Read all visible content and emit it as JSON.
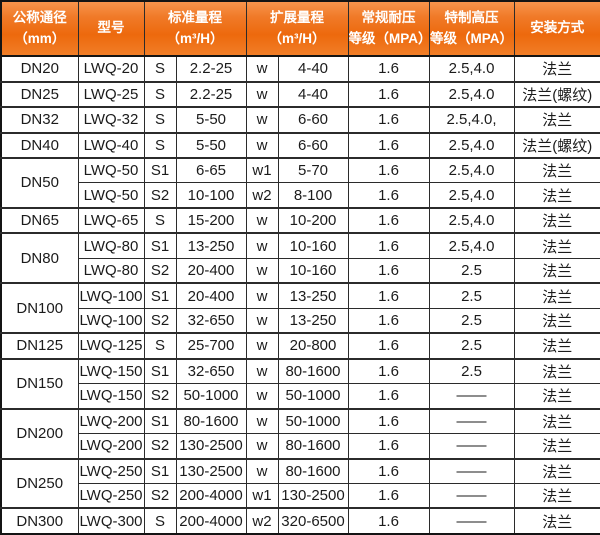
{
  "colors": {
    "header_orange": "#ed690d",
    "header_orange_light": "#f8944c",
    "header_text": "#ffffff",
    "grid_border": "#2b2b2b",
    "cell_text": "#1b1b1b"
  },
  "header": {
    "nominal_diameter": "公称通径\n（mm）",
    "model": "型号",
    "standard_range": "标准量程\n（m³/H）",
    "extended_range": "扩展量程\n（m³/H）",
    "regular_pressure": "常规耐压\n等级（MPA）",
    "special_pressure": "特制高压\n等级（MPA）",
    "installation": "安装方式"
  },
  "table": {
    "groups": [
      {
        "dn": "DN20",
        "rows": [
          {
            "model": "LWQ-20",
            "s": "S",
            "s_range": "2.2-25",
            "w": "w",
            "w_range": "4-40",
            "pressure": "1.6",
            "high_pressure": "2.5,4.0",
            "install": "法兰"
          }
        ]
      },
      {
        "dn": "DN25",
        "rows": [
          {
            "model": "LWQ-25",
            "s": "S",
            "s_range": "2.2-25",
            "w": "w",
            "w_range": "4-40",
            "pressure": "1.6",
            "high_pressure": "2.5,4.0",
            "install": "法兰(螺纹)"
          }
        ]
      },
      {
        "dn": "DN32",
        "rows": [
          {
            "model": "LWQ-32",
            "s": "S",
            "s_range": "5-50",
            "w": "w",
            "w_range": "6-60",
            "pressure": "1.6",
            "high_pressure": "2.5,4.0,",
            "install": "法兰"
          }
        ]
      },
      {
        "dn": "DN40",
        "rows": [
          {
            "model": "LWQ-40",
            "s": "S",
            "s_range": "5-50",
            "w": "w",
            "w_range": "6-60",
            "pressure": "1.6",
            "high_pressure": "2.5,4.0",
            "install": "法兰(螺纹)"
          }
        ]
      },
      {
        "dn": "DN50",
        "rows": [
          {
            "model": "LWQ-50",
            "s": "S1",
            "s_range": "6-65",
            "w": "w1",
            "w_range": "5-70",
            "pressure": "1.6",
            "high_pressure": "2.5,4.0",
            "install": "法兰"
          },
          {
            "model": "LWQ-50",
            "s": "S2",
            "s_range": "10-100",
            "w": "w2",
            "w_range": "8-100",
            "pressure": "1.6",
            "high_pressure": "2.5,4.0",
            "install": "法兰"
          }
        ]
      },
      {
        "dn": "DN65",
        "rows": [
          {
            "model": "LWQ-65",
            "s": "S",
            "s_range": "15-200",
            "w": "w",
            "w_range": "10-200",
            "pressure": "1.6",
            "high_pressure": "2.5,4.0",
            "install": "法兰"
          }
        ]
      },
      {
        "dn": "DN80",
        "rows": [
          {
            "model": "LWQ-80",
            "s": "S1",
            "s_range": "13-250",
            "w": "w",
            "w_range": "10-160",
            "pressure": "1.6",
            "high_pressure": "2.5,4.0",
            "install": "法兰"
          },
          {
            "model": "LWQ-80",
            "s": "S2",
            "s_range": "20-400",
            "w": "w",
            "w_range": "10-160",
            "pressure": "1.6",
            "high_pressure": "2.5",
            "install": "法兰"
          }
        ]
      },
      {
        "dn": "DN100",
        "rows": [
          {
            "model": "LWQ-100",
            "s": "S1",
            "s_range": "20-400",
            "w": "w",
            "w_range": "13-250",
            "pressure": "1.6",
            "high_pressure": "2.5",
            "install": "法兰"
          },
          {
            "model": "LWQ-100",
            "s": "S2",
            "s_range": "32-650",
            "w": "w",
            "w_range": "13-250",
            "pressure": "1.6",
            "high_pressure": "2.5",
            "install": "法兰"
          }
        ]
      },
      {
        "dn": "DN125",
        "rows": [
          {
            "model": "LWQ-125",
            "s": "S",
            "s_range": "25-700",
            "w": "w",
            "w_range": "20-800",
            "pressure": "1.6",
            "high_pressure": "2.5",
            "install": "法兰"
          }
        ]
      },
      {
        "dn": "DN150",
        "rows": [
          {
            "model": "LWQ-150",
            "s": "S1",
            "s_range": "32-650",
            "w": "w",
            "w_range": "80-1600",
            "pressure": "1.6",
            "high_pressure": "2.5",
            "install": "法兰"
          },
          {
            "model": "LWQ-150",
            "s": "S2",
            "s_range": "50-1000",
            "w": "w",
            "w_range": "50-1000",
            "pressure": "1.6",
            "high_pressure": "——",
            "install": "法兰"
          }
        ]
      },
      {
        "dn": "DN200",
        "rows": [
          {
            "model": "LWQ-200",
            "s": "S1",
            "s_range": "80-1600",
            "w": "w",
            "w_range": "50-1000",
            "pressure": "1.6",
            "high_pressure": "——",
            "install": "法兰"
          },
          {
            "model": "LWQ-200",
            "s": "S2",
            "s_range": "130-2500",
            "w": "w",
            "w_range": "80-1600",
            "pressure": "1.6",
            "high_pressure": "——",
            "install": "法兰"
          }
        ]
      },
      {
        "dn": "DN250",
        "rows": [
          {
            "model": "LWQ-250",
            "s": "S1",
            "s_range": "130-2500",
            "w": "w",
            "w_range": "80-1600",
            "pressure": "1.6",
            "high_pressure": "——",
            "install": "法兰"
          },
          {
            "model": "LWQ-250",
            "s": "S2",
            "s_range": "200-4000",
            "w": "w1",
            "w_range": "130-2500",
            "pressure": "1.6",
            "high_pressure": "——",
            "install": "法兰"
          }
        ]
      },
      {
        "dn": "DN300",
        "rows": [
          {
            "model": "LWQ-300",
            "s": "S",
            "s_range": "200-4000",
            "w": "w2",
            "w_range": "320-6500",
            "pressure": "1.6",
            "high_pressure": "——",
            "install": "法兰"
          }
        ]
      }
    ]
  }
}
